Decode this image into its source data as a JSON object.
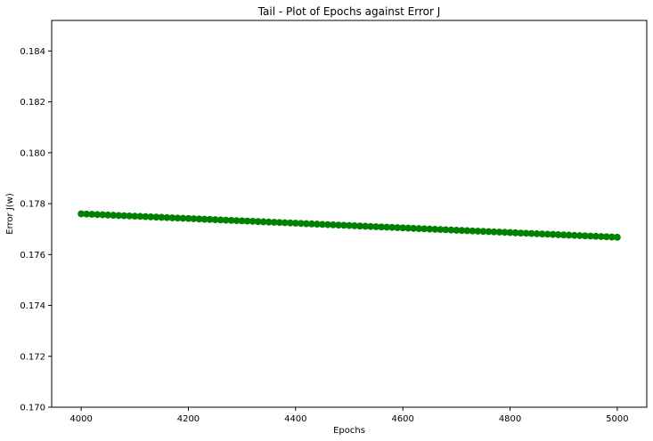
{
  "chart_data": {
    "type": "scatter",
    "title": "Tail - Plot of Epochs against Error J",
    "xlabel": "Epochs",
    "ylabel": "Error J(w)",
    "xlim": [
      3945,
      5055
    ],
    "ylim": [
      0.17,
      0.1852
    ],
    "xticks": [
      4000,
      4200,
      4400,
      4600,
      4800,
      5000
    ],
    "xtick_labels": [
      "4000",
      "4200",
      "4400",
      "4600",
      "4800",
      "5000"
    ],
    "yticks": [
      0.17,
      0.172,
      0.174,
      0.176,
      0.178,
      0.18,
      0.182,
      0.184
    ],
    "ytick_labels": [
      "0.170",
      "0.172",
      "0.174",
      "0.176",
      "0.178",
      "0.180",
      "0.182",
      "0.184"
    ],
    "grid": false,
    "marker": "circle",
    "series": [
      {
        "color": "#008000",
        "x_start": 4000,
        "x_end": 5000,
        "x_step": 10,
        "y_start": 0.1776,
        "y_end": 0.17668
      }
    ]
  }
}
